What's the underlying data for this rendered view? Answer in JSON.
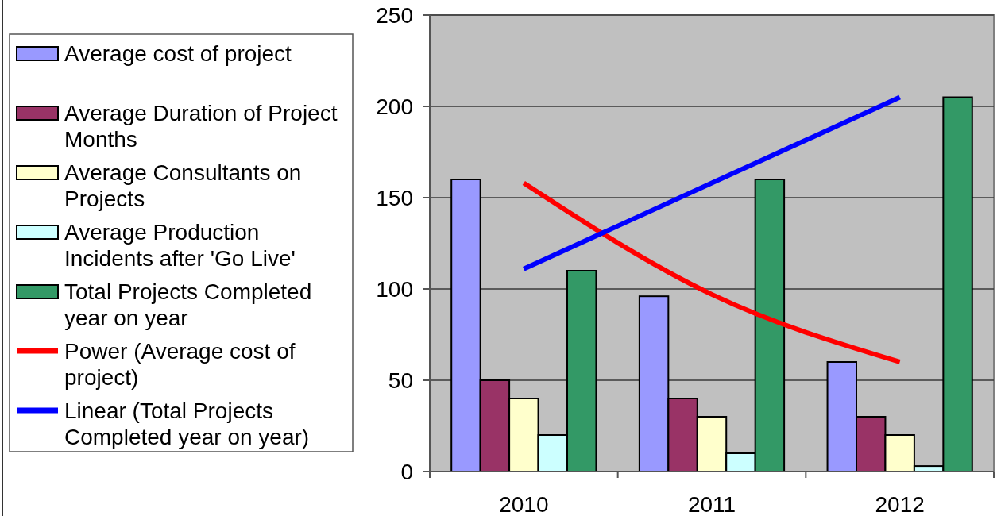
{
  "chart_data": {
    "type": "bar",
    "categories": [
      "2010",
      "2011",
      "2012"
    ],
    "series": [
      {
        "name": "Average cost of project",
        "color": "#9999ff",
        "values": [
          160,
          96,
          60
        ]
      },
      {
        "name": "Average Duration of Project Months",
        "color": "#993366",
        "values": [
          50,
          40,
          30
        ]
      },
      {
        "name": "Average Consultants on Projects",
        "color": "#ffffcc",
        "values": [
          40,
          30,
          20
        ]
      },
      {
        "name": "Average Production Incidents after 'Go Live'",
        "color": "#ccffff",
        "values": [
          20,
          10,
          3
        ]
      },
      {
        "name": "Total Projects Completed year on year",
        "color": "#339966",
        "values": [
          110,
          160,
          205
        ]
      },
      {
        "name": "Power (Average cost of project)",
        "type": "line",
        "color": "#ff0000",
        "values": [
          158,
          97,
          60
        ]
      },
      {
        "name": "Linear (Total Projects Completed year on year)",
        "type": "line",
        "color": "#0000ff",
        "values": [
          111,
          158,
          205
        ]
      }
    ],
    "ylim": [
      0,
      250
    ],
    "yticks": [
      0,
      50,
      100,
      150,
      200,
      250
    ],
    "grid": "y",
    "legend": "left"
  }
}
